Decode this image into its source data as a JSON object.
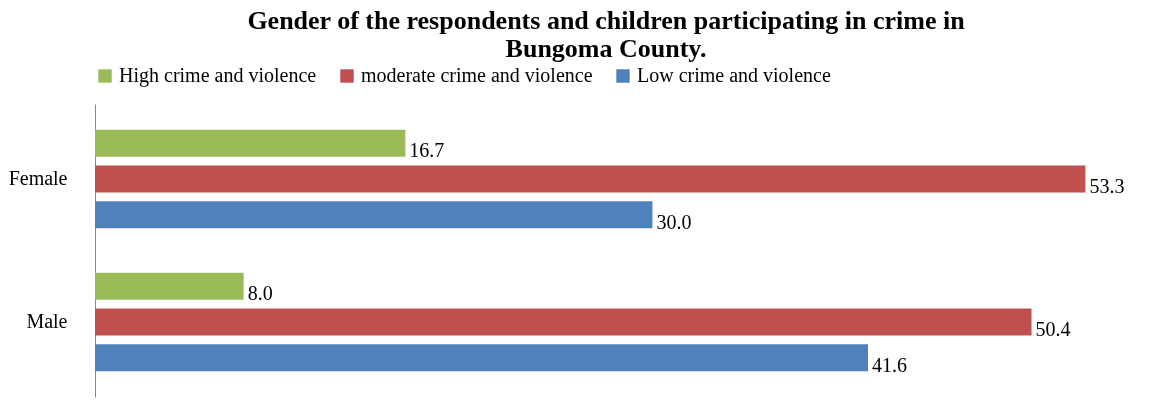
{
  "chart_data": {
    "type": "bar",
    "orientation": "horizontal",
    "title": "Gender of the respondents and children participating in crime in Bungoma County.",
    "categories": [
      "Female",
      "Male"
    ],
    "series": [
      {
        "name": "High crime and violence",
        "color": "#9bbb59",
        "values": [
          16.7,
          8.0
        ],
        "value_labels": [
          "16.7",
          "8.0"
        ]
      },
      {
        "name": "moderate crime and violence",
        "color": "#c0504d",
        "values": [
          53.3,
          50.4
        ],
        "value_labels": [
          "53.3",
          "50.4"
        ]
      },
      {
        "name": "Low crime and violence",
        "color": "#4f81bd",
        "values": [
          30.0,
          41.6
        ],
        "value_labels": [
          "30.0",
          "41.6"
        ]
      }
    ],
    "legend": "top",
    "grid": false
  }
}
